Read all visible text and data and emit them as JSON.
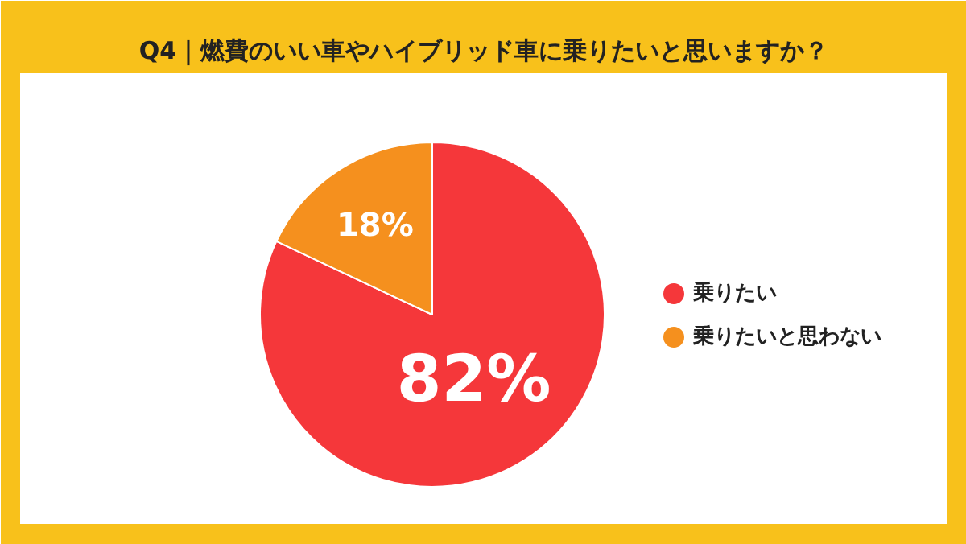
{
  "chart_data": {
    "type": "pie",
    "title": "Q4｜燃費のいい車やハイブリッド車に乗りたいと思いますか？",
    "categories": [
      "乗りたい",
      "乗りたいと思わない"
    ],
    "values": [
      82,
      18
    ],
    "colors": [
      "#f5373a",
      "#f5901e"
    ],
    "value_labels": [
      "82%",
      "18%"
    ],
    "legend": "right"
  }
}
